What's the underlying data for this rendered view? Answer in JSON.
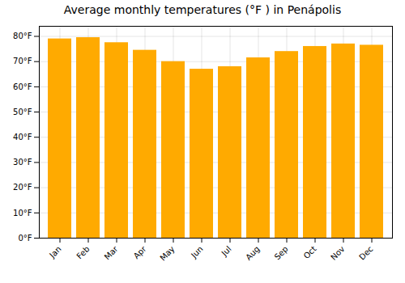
{
  "chart_data": {
    "type": "bar",
    "title": "Average monthly temperatures (°F ) in Penápolis",
    "categories": [
      "Jan",
      "Feb",
      "Mar",
      "Apr",
      "May",
      "Jun",
      "Jul",
      "Aug",
      "Sep",
      "Oct",
      "Nov",
      "Dec"
    ],
    "values": [
      79,
      79.5,
      77.5,
      74.5,
      70,
      67,
      68,
      71.5,
      74,
      76,
      77,
      76.5
    ],
    "color": "#FFAA00",
    "ylim": [
      0,
      84
    ],
    "yticks": [
      {
        "value": 0,
        "label": "0°F"
      },
      {
        "value": 10,
        "label": "10°F"
      },
      {
        "value": 20,
        "label": "20°F"
      },
      {
        "value": 30,
        "label": "30°F"
      },
      {
        "value": 40,
        "label": "40°F"
      },
      {
        "value": 50,
        "label": "50°F"
      },
      {
        "value": 60,
        "label": "60°F"
      },
      {
        "value": 70,
        "label": "70°F"
      },
      {
        "value": 80,
        "label": "80°F"
      }
    ],
    "grid": true
  }
}
